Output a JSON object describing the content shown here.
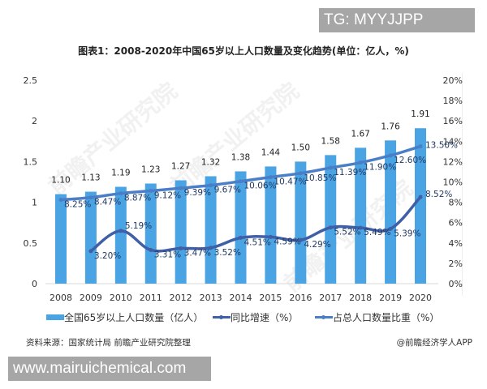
{
  "overlays": {
    "top_badge": "TG: MYYJJPP",
    "bottom_badge": "www.mairuichemical.com"
  },
  "watermark": "前瞻产业研究院",
  "chart_data": {
    "type": "bar+line",
    "title": "图表1：2008-2020年中国65岁以上人口数量及变化趋势(单位：亿人，%)",
    "categories": [
      "2008",
      "2009",
      "2010",
      "2011",
      "2012",
      "2013",
      "2014",
      "2015",
      "2016",
      "2017",
      "2018",
      "2019",
      "2020"
    ],
    "series": [
      {
        "name": "全国65岁以上人口数量（亿人）",
        "type": "bar",
        "axis": "left",
        "color": "#4aa3e3",
        "values": [
          1.1,
          1.13,
          1.19,
          1.23,
          1.27,
          1.32,
          1.38,
          1.44,
          1.5,
          1.58,
          1.67,
          1.76,
          1.91
        ],
        "labels": [
          "1.10",
          "1.13",
          "1.19",
          "1.23",
          "1.27",
          "1.32",
          "1.38",
          "1.44",
          "1.50",
          "1.58",
          "1.67",
          "1.76",
          "1.91"
        ]
      },
      {
        "name": "同比增速（%）",
        "type": "line",
        "axis": "right",
        "color": "#3f5fa6",
        "values": [
          null,
          3.2,
          5.19,
          3.31,
          3.47,
          3.52,
          4.51,
          4.59,
          4.29,
          5.52,
          5.49,
          5.39,
          8.52
        ],
        "labels": [
          "",
          "3.20%",
          "5.19%",
          "3.31%",
          "3.47%",
          "3.52%",
          "4.51%",
          "4.59%",
          "4.29%",
          "5.52%",
          "5.49%",
          "5.39%",
          "8.52%"
        ]
      },
      {
        "name": "占总人口数量比重（%）",
        "type": "line",
        "axis": "right",
        "color": "#4a7fc8",
        "values": [
          8.25,
          8.47,
          8.87,
          9.12,
          9.39,
          9.67,
          10.06,
          10.47,
          10.85,
          11.39,
          11.9,
          12.6,
          13.5
        ],
        "labels": [
          "8.25%",
          "8.47%",
          "8.87%",
          "9.12%",
          "9.39%",
          "9.67%",
          "10.06%",
          "10.47%",
          "10.85%",
          "11.39%",
          "11.90%",
          "12.60%",
          "13.50%"
        ]
      }
    ],
    "left_axis": {
      "ticks": [
        "0",
        "0.5",
        "1",
        "1.5",
        "2",
        "2.5"
      ],
      "ylim": [
        0,
        2.5
      ]
    },
    "right_axis": {
      "ticks": [
        "0%",
        "2%",
        "4%",
        "6%",
        "8%",
        "10%",
        "12%",
        "14%",
        "16%",
        "18%",
        "20%"
      ],
      "ylim": [
        0,
        20
      ]
    },
    "grid": false,
    "legend_position": "bottom"
  },
  "legend": {
    "bar": "全国65岁以上人口数量（亿人）",
    "growth": "同比增速（%）",
    "share": "占总人口数量比重（%）"
  },
  "footer": {
    "source": "资料来源：国家统计局 前瞻产业研究院整理",
    "credit": "@前瞻经济学人APP"
  }
}
